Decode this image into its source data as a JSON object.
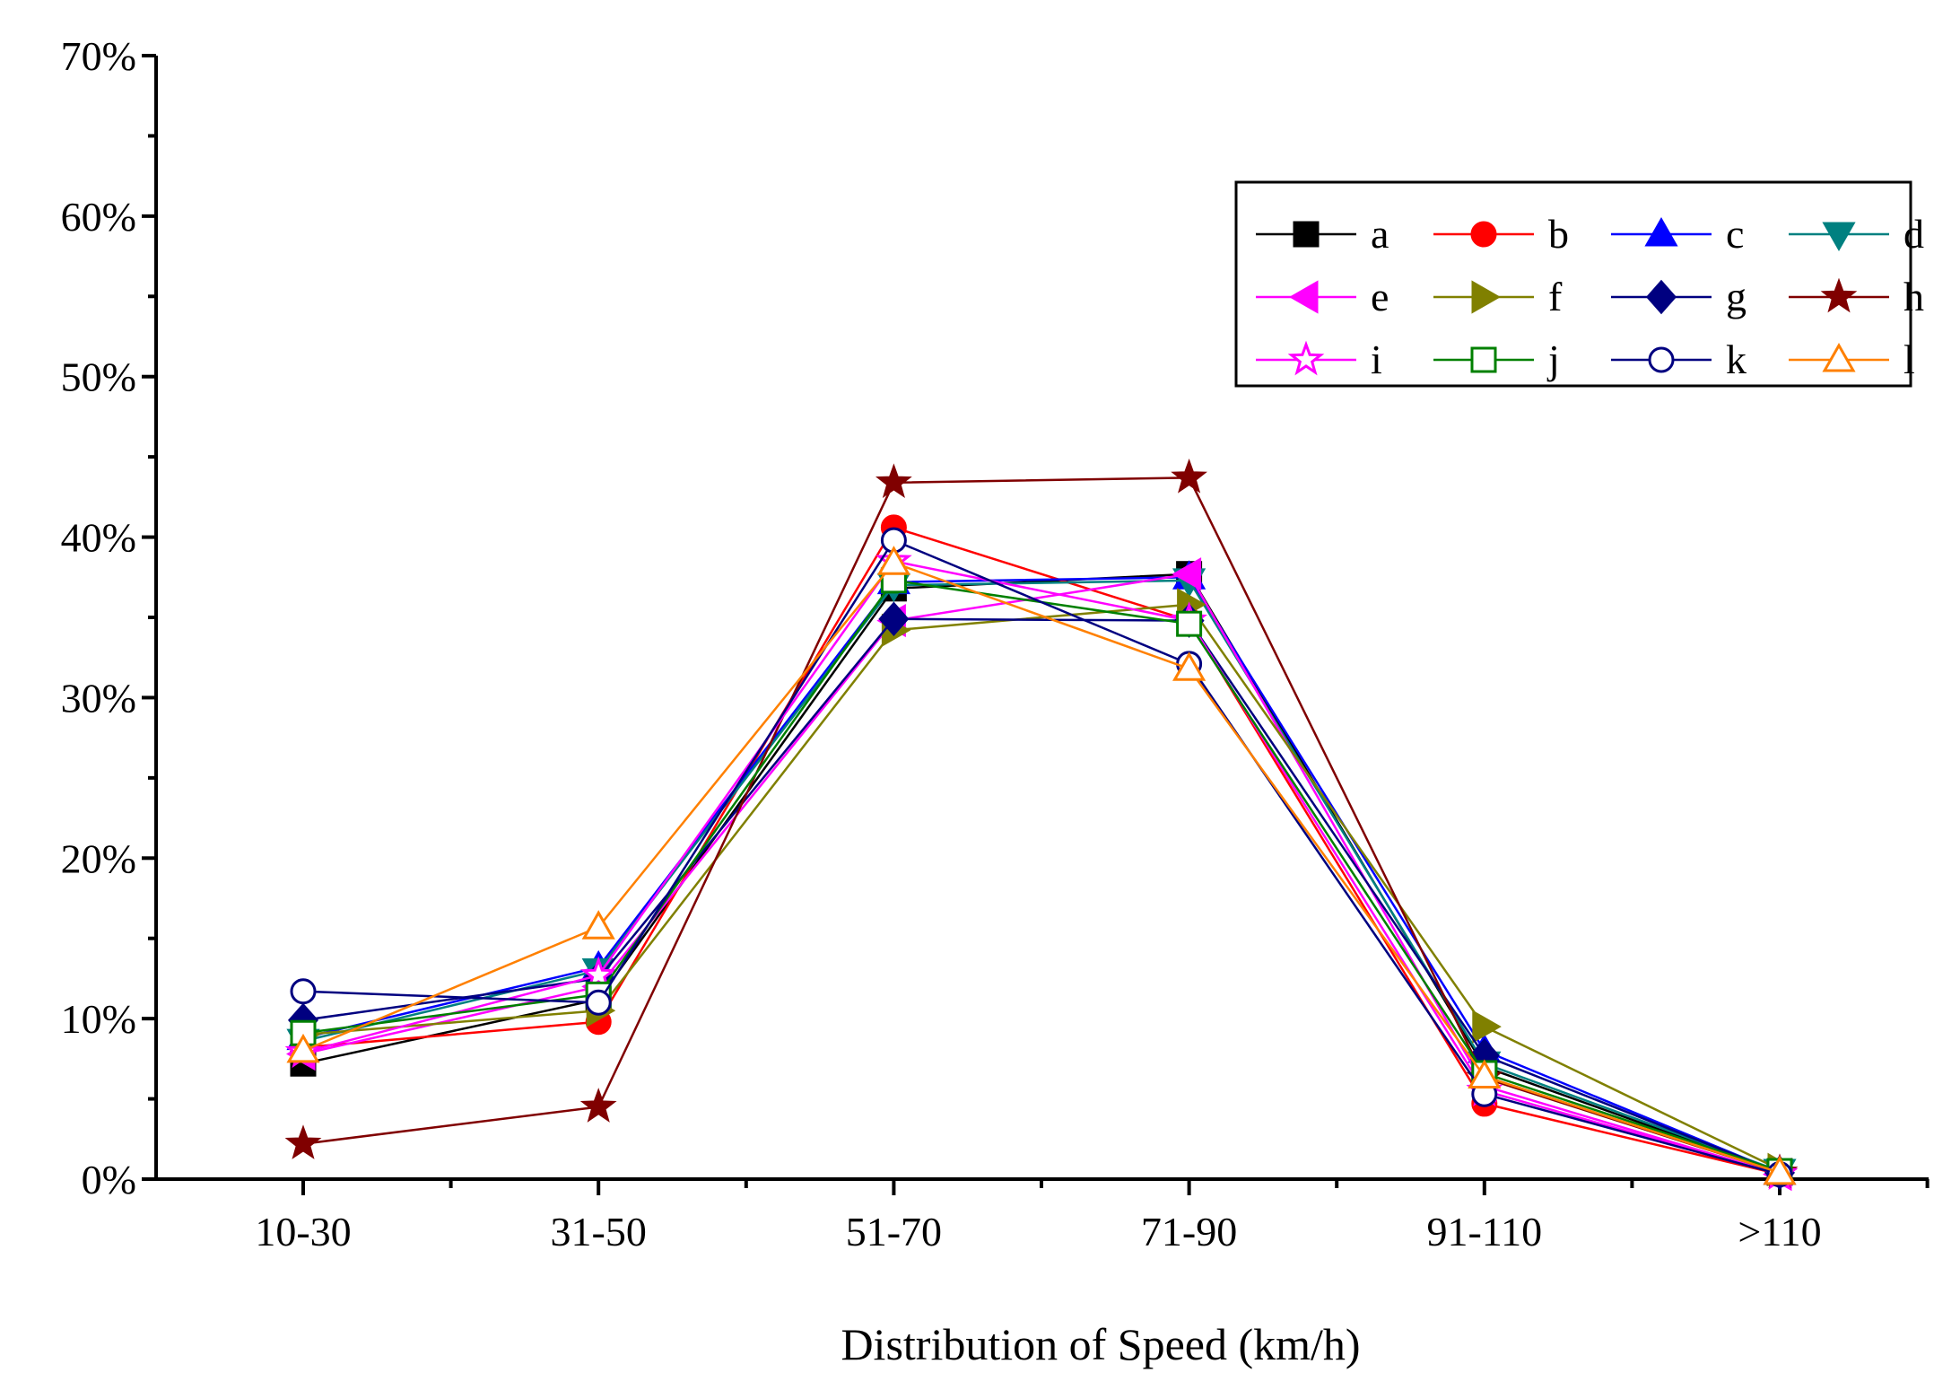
{
  "chart_data": {
    "type": "line",
    "title": "",
    "xlabel": "Distribution of Speed (km/h)",
    "ylabel": "",
    "categories": [
      "10-30",
      "31-50",
      "51-70",
      "71-90",
      "91-110",
      ">110"
    ],
    "ylim": [
      0,
      0.7
    ],
    "yticks": [
      0,
      0.1,
      0.2,
      0.3,
      0.4,
      0.5,
      0.6,
      0.7
    ],
    "ytick_labels": [
      "0%",
      "10%",
      "20%",
      "30%",
      "40%",
      "50%",
      "60%",
      "70%"
    ],
    "grid": false,
    "legend_position": "top-right",
    "legend_columns": 4,
    "series": [
      {
        "name": "a",
        "color": "#000000",
        "marker": "square",
        "filled": true,
        "values": [
          0.072,
          0.112,
          0.368,
          0.377,
          0.07,
          0.004
        ]
      },
      {
        "name": "b",
        "color": "#ff0000",
        "marker": "circle",
        "filled": true,
        "values": [
          0.082,
          0.098,
          0.406,
          0.348,
          0.047,
          0.003
        ]
      },
      {
        "name": "c",
        "color": "#0000ff",
        "marker": "triangle-up",
        "filled": true,
        "values": [
          0.088,
          0.132,
          0.372,
          0.375,
          0.08,
          0.004
        ]
      },
      {
        "name": "d",
        "color": "#008080",
        "marker": "triangle-down",
        "filled": true,
        "values": [
          0.086,
          0.13,
          0.37,
          0.373,
          0.072,
          0.005
        ]
      },
      {
        "name": "e",
        "color": "#ff00ff",
        "marker": "triangle-left",
        "filled": true,
        "values": [
          0.078,
          0.12,
          0.348,
          0.377,
          0.058,
          0.003
        ]
      },
      {
        "name": "f",
        "color": "#808000",
        "marker": "triangle-right",
        "filled": true,
        "values": [
          0.09,
          0.105,
          0.342,
          0.358,
          0.095,
          0.006
        ]
      },
      {
        "name": "g",
        "color": "#000080",
        "marker": "diamond",
        "filled": true,
        "values": [
          0.099,
          0.125,
          0.349,
          0.348,
          0.077,
          0.004
        ]
      },
      {
        "name": "h",
        "color": "#800000",
        "marker": "star",
        "filled": true,
        "values": [
          0.022,
          0.045,
          0.434,
          0.437,
          0.063,
          0.004
        ]
      },
      {
        "name": "i",
        "color": "#ff00ff",
        "marker": "star",
        "filled": false,
        "values": [
          0.079,
          0.127,
          0.385,
          0.348,
          0.055,
          0.003
        ]
      },
      {
        "name": "j",
        "color": "#008000",
        "marker": "square",
        "filled": false,
        "values": [
          0.091,
          0.115,
          0.373,
          0.346,
          0.066,
          0.005
        ]
      },
      {
        "name": "k",
        "color": "#000080",
        "marker": "circle",
        "filled": false,
        "values": [
          0.117,
          0.11,
          0.398,
          0.321,
          0.053,
          0.003
        ]
      },
      {
        "name": "l",
        "color": "#ff8000",
        "marker": "triangle-up",
        "filled": false,
        "values": [
          0.08,
          0.157,
          0.384,
          0.318,
          0.064,
          0.004
        ]
      }
    ]
  }
}
